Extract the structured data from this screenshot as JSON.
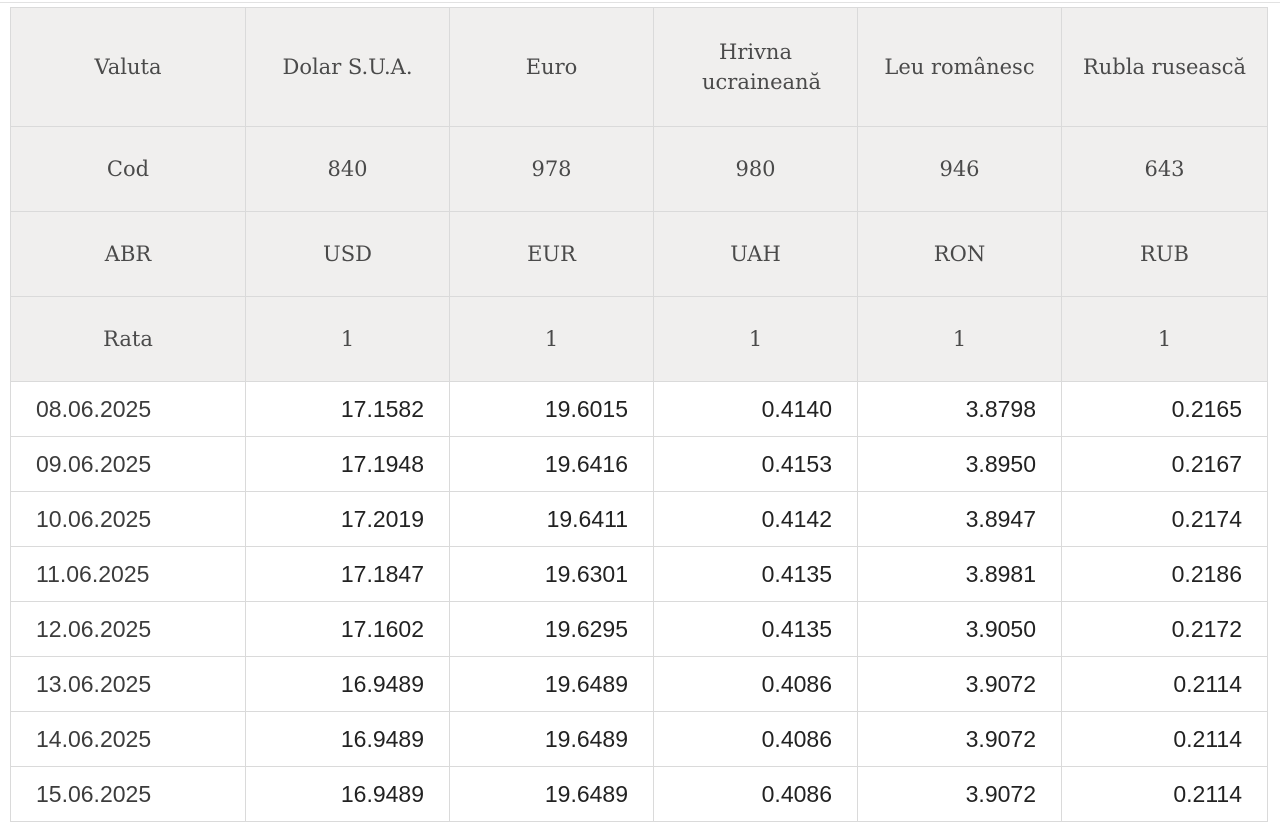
{
  "table": {
    "header": {
      "currency_label": "Valuta",
      "currencies": [
        "Dolar S.U.A.",
        "Euro",
        "Hrivna ucraineană",
        "Leu românesc",
        "Rubla rusească"
      ],
      "code_label": "Cod",
      "codes": [
        "840",
        "978",
        "980",
        "946",
        "643"
      ],
      "abr_label": "ABR",
      "abbreviations": [
        "USD",
        "EUR",
        "UAH",
        "RON",
        "RUB"
      ],
      "rate_label": "Rata",
      "rates": [
        "1",
        "1",
        "1",
        "1",
        "1"
      ]
    },
    "rows": [
      {
        "date": "08.06.2025",
        "values": [
          "17.1582",
          "19.6015",
          "0.4140",
          "3.8798",
          "0.2165"
        ]
      },
      {
        "date": "09.06.2025",
        "values": [
          "17.1948",
          "19.6416",
          "0.4153",
          "3.8950",
          "0.2167"
        ]
      },
      {
        "date": "10.06.2025",
        "values": [
          "17.2019",
          "19.6411",
          "0.4142",
          "3.8947",
          "0.2174"
        ]
      },
      {
        "date": "11.06.2025",
        "values": [
          "17.1847",
          "19.6301",
          "0.4135",
          "3.8981",
          "0.2186"
        ]
      },
      {
        "date": "12.06.2025",
        "values": [
          "17.1602",
          "19.6295",
          "0.4135",
          "3.9050",
          "0.2172"
        ]
      },
      {
        "date": "13.06.2025",
        "values": [
          "16.9489",
          "19.6489",
          "0.4086",
          "3.9072",
          "0.2114"
        ]
      },
      {
        "date": "14.06.2025",
        "values": [
          "16.9489",
          "19.6489",
          "0.4086",
          "3.9072",
          "0.2114"
        ]
      },
      {
        "date": "15.06.2025",
        "values": [
          "16.9489",
          "19.6489",
          "0.4086",
          "3.9072",
          "0.2114"
        ]
      }
    ]
  },
  "colors": {
    "header_background": "#f0efee",
    "border": "#dadada",
    "text": "#222222"
  }
}
